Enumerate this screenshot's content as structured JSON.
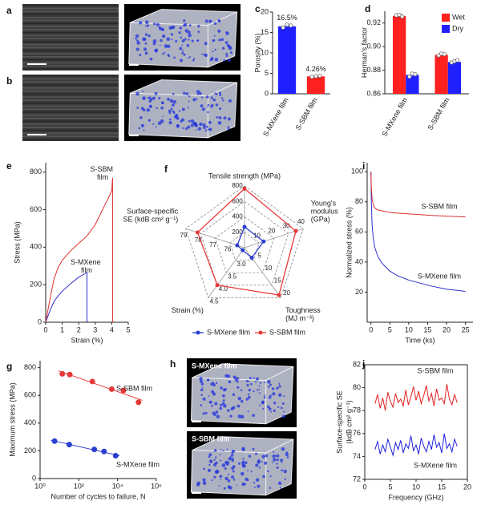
{
  "image_panels": [
    {
      "label": "a"
    },
    {
      "label": "b"
    },
    {
      "label": "h",
      "captions": [
        "S-MXene film",
        "S-SBM film"
      ]
    }
  ],
  "chart_data": [
    {
      "type": "bar",
      "label": "c",
      "ylabel": "Porosity (%)",
      "categories": [
        "S-MXene film",
        "S-SBM film"
      ],
      "values": [
        16.5,
        4.26
      ],
      "value_labels": [
        "16.5%",
        "4.26%"
      ],
      "colors": [
        "#2020ff",
        "#ff2020"
      ],
      "points": [
        [
          16.2,
          16.9,
          16.7
        ],
        [
          4.15,
          4.3,
          4.4
        ]
      ],
      "ylim": [
        0,
        20
      ],
      "yticks": [
        0,
        5,
        10,
        15,
        20
      ]
    },
    {
      "type": "bar",
      "label": "d",
      "ylabel": "Herman's factor",
      "categories": [
        "S-MXene film",
        "S-SBM film"
      ],
      "series": [
        {
          "name": "Wet",
          "color": "#ff2020",
          "values": [
            0.926,
            0.893
          ],
          "points": [
            [
              0.9265,
              0.927,
              0.9255
            ],
            [
              0.8925,
              0.894,
              0.8935
            ]
          ]
        },
        {
          "name": "Dry",
          "color": "#2020ff",
          "values": [
            0.876,
            0.887
          ],
          "points": [
            [
              0.8745,
              0.877,
              0.8765
            ],
            [
              0.8865,
              0.8875,
              0.8885
            ]
          ]
        }
      ],
      "ylim": [
        0.86,
        0.93
      ],
      "yticks": [
        0.86,
        0.88,
        {
          "value": 0.9,
          "label": "0.90"
        },
        0.92
      ],
      "legend": "upper right"
    },
    {
      "type": "line",
      "label": "e",
      "xlabel": "Strain (%)",
      "ylabel": "Stress (MPa)",
      "series": [
        {
          "name": "S-MXene film",
          "color": "#3030d0",
          "x": [
            0,
            0.25,
            0.5,
            0.75,
            1,
            1.25,
            1.5,
            1.75,
            2,
            2.25,
            2.5,
            2.5
          ],
          "values": [
            0,
            60,
            110,
            140,
            165,
            185,
            205,
            222,
            240,
            252,
            265,
            0
          ]
        },
        {
          "name": "S-SBM film",
          "color": "#e03030",
          "x": [
            0,
            0.25,
            0.5,
            0.75,
            1,
            1.5,
            2,
            2.5,
            3,
            3.5,
            4,
            4.05,
            4.05
          ],
          "values": [
            0,
            120,
            230,
            290,
            330,
            380,
            420,
            460,
            520,
            610,
            700,
            770,
            0
          ]
        }
      ],
      "xlim": [
        0,
        5
      ],
      "xticks": [
        0,
        1,
        2,
        3,
        4,
        5
      ],
      "ylim": [
        0,
        850
      ],
      "yticks": [
        0,
        200,
        400,
        600,
        800
      ]
    },
    {
      "type": "radar",
      "label": "f",
      "axes": [
        {
          "name": [
            "Tensile strength (MPa)"
          ],
          "lim": [
            0,
            800
          ],
          "ticks": [
            200,
            400,
            600,
            800
          ]
        },
        {
          "name": [
            "Young's",
            "modulus",
            "(GPa)"
          ],
          "lim": [
            0,
            40
          ],
          "ticks": [
            10,
            20,
            30,
            40
          ]
        },
        {
          "name": [
            "Toughness",
            "(MJ m⁻³)"
          ],
          "lim": [
            0,
            20
          ],
          "ticks": [
            5,
            10,
            15,
            20
          ]
        },
        {
          "name": [
            "Strain (%)"
          ],
          "lim": [
            2.5,
            4.5
          ],
          "ticks": [
            {
              "value": 3,
              "label": "3.0"
            },
            3.5,
            {
              "value": 4,
              "label": "4.0"
            },
            4.5
          ]
        },
        {
          "name": [
            "Surface-specific",
            "SE (kdB cm² g⁻¹)"
          ],
          "lim": [
            75,
            79
          ],
          "ticks": [
            76,
            77,
            78,
            79
          ]
        }
      ],
      "series": [
        {
          "name": "S-MXene film",
          "color": "#2a3fd0",
          "values": [
            270,
            13,
            4,
            2.6,
            75.5
          ]
        },
        {
          "name": "S-SBM film",
          "color": "#e83838",
          "values": [
            765,
            35,
            19,
            4.0,
            78.2
          ]
        }
      ],
      "legend": "bottom"
    },
    {
      "type": "scatter",
      "label": "g",
      "xlabel": "Number of cycles to failure, N",
      "ylabel": "Maximum stress (MPa)",
      "xscale": "log",
      "trend": true,
      "series": [
        {
          "name": "S-MXene film",
          "color": "#2a3fd0",
          "x": [
            5.6,
            32,
            630,
            2000,
            8000
          ],
          "values": [
            270,
            245,
            210,
            195,
            165
          ]
        },
        {
          "name": "S-SBM film",
          "color": "#e83838",
          "x": [
            14,
            34,
            500,
            5000,
            20000,
            120000
          ],
          "values": [
            755,
            750,
            700,
            645,
            635,
            550
          ]
        }
      ],
      "xlim": [
        1,
        1000000
      ],
      "xticks": [
        {
          "value": 1,
          "label": "10⁰"
        },
        {
          "value": 100,
          "label": "10²"
        },
        {
          "value": 10000,
          "label": "10⁴"
        },
        {
          "value": 1000000,
          "label": "10⁶"
        }
      ],
      "ylim": [
        0,
        850
      ],
      "yticks": [
        0,
        200,
        400,
        600,
        800
      ]
    },
    {
      "type": "line",
      "label": "i",
      "xlabel": "Time (ks)",
      "ylabel": "Normalized stress (%)",
      "series": [
        {
          "name": "S-MXene film",
          "color": "#3030d0",
          "x": [
            0,
            0.1,
            0.3,
            0.6,
            1,
            1.5,
            2,
            3,
            5,
            7,
            10,
            13,
            16,
            20,
            25
          ],
          "values": [
            100,
            80,
            65,
            56,
            50,
            46,
            43,
            39,
            34,
            31,
            28,
            26,
            24,
            22,
            20.5
          ]
        },
        {
          "name": "S-SBM film",
          "color": "#e03030",
          "x": [
            0,
            0.1,
            0.3,
            0.6,
            1,
            1.5,
            2,
            3,
            5,
            7,
            10,
            13,
            16,
            20,
            25
          ],
          "values": [
            100,
            90,
            82,
            78,
            76,
            75,
            74.5,
            74,
            73,
            72.5,
            72,
            71.5,
            71,
            70.5,
            70
          ]
        }
      ],
      "xlim": [
        -1,
        27
      ],
      "xticks": [
        0,
        5,
        10,
        15,
        20,
        25
      ],
      "ylim": [
        0,
        106
      ],
      "yticks": [
        20,
        40,
        60,
        80,
        100
      ]
    },
    {
      "type": "line",
      "label": "j",
      "xlabel": "Frequency (GHz)",
      "ylabel": [
        "Surface-specific SE",
        "(kdB cm² g⁻¹)"
      ],
      "series": [
        {
          "name": "S-MXene film",
          "color": "#2020e0",
          "x": [
            2,
            2.5,
            3,
            3.5,
            4,
            4.5,
            5,
            5.5,
            6,
            6.5,
            7,
            7.5,
            8,
            8.5,
            9,
            9.5,
            10,
            10.5,
            11,
            11.5,
            12,
            12.5,
            13,
            13.5,
            14,
            14.5,
            15,
            15.5,
            16,
            16.5,
            17,
            17.5,
            18
          ],
          "values": [
            74.6,
            75.3,
            74.2,
            75.0,
            74.4,
            75.5,
            74.8,
            74.1,
            75.2,
            74.6,
            75.4,
            74.3,
            75.1,
            74.7,
            75.8,
            74.5,
            75.0,
            74.2,
            75.6,
            74.9,
            74.4,
            75.3,
            74.6,
            75.9,
            74.8,
            75.2,
            74.3,
            76.0,
            74.7,
            75.1,
            74.4,
            75.5,
            74.9
          ]
        },
        {
          "name": "S-SBM film",
          "color": "#e02020",
          "x": [
            2,
            2.5,
            3,
            3.5,
            4,
            4.5,
            5,
            5.5,
            6,
            6.5,
            7,
            7.5,
            8,
            8.5,
            9,
            9.5,
            10,
            10.5,
            11,
            11.5,
            12,
            12.5,
            13,
            13.5,
            14,
            14.5,
            15,
            15.5,
            16,
            16.5,
            17,
            17.5,
            18
          ],
          "values": [
            78.6,
            79.4,
            78.2,
            79.1,
            78.0,
            79.6,
            78.8,
            78.3,
            79.5,
            78.7,
            79.0,
            78.4,
            79.8,
            78.5,
            79.2,
            80.1,
            78.9,
            79.7,
            78.6,
            79.3,
            80.2,
            78.8,
            79.5,
            78.4,
            79.9,
            78.9,
            79.1,
            78.6,
            80.3,
            79.0,
            78.5,
            79.4,
            78.7
          ]
        }
      ],
      "xlim": [
        0,
        20
      ],
      "xticks": [
        0,
        5,
        10,
        15,
        20
      ],
      "ylim": [
        72,
        82
      ],
      "yticks": [
        72,
        74,
        76,
        78,
        80,
        82
      ]
    }
  ]
}
